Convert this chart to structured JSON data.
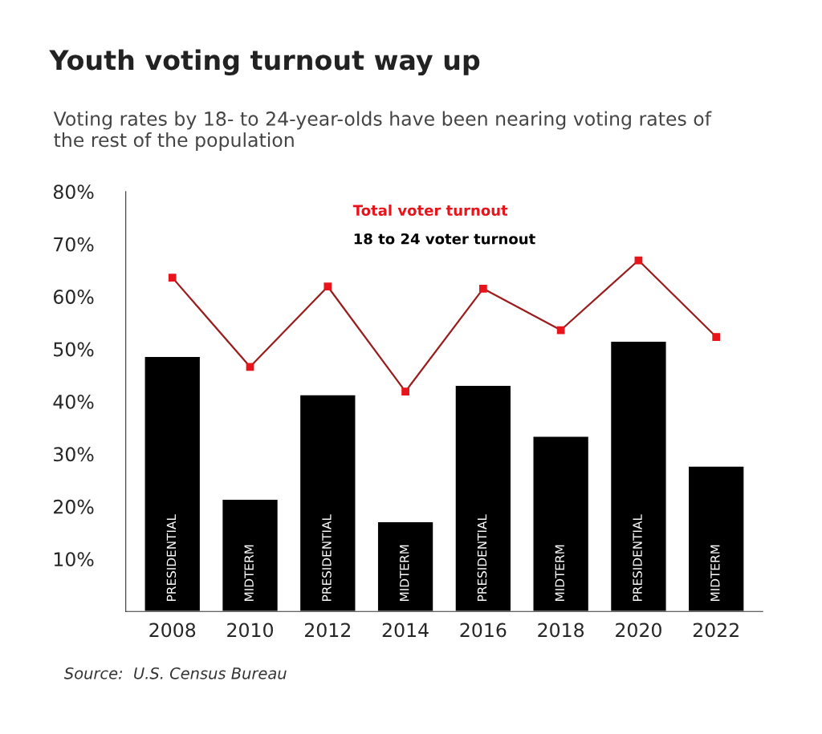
{
  "chart_data": {
    "type": "bar",
    "title": "Youth voting turnout way up",
    "subtitle": "Voting rates by 18- to 24-year-olds have been nearing voting rates of the rest of the population",
    "categories": [
      "2008",
      "2010",
      "2012",
      "2014",
      "2016",
      "2018",
      "2020",
      "2022"
    ],
    "series": [
      {
        "name": "18 to 24 voter turnout",
        "color": "#000000",
        "values": [
          48.6,
          21.4,
          41.3,
          17.1,
          43.1,
          33.4,
          51.5,
          27.7
        ]
      },
      {
        "name": "Total voter turnout",
        "type": "line",
        "color": "#9b1c1c",
        "marker": "square",
        "line_style": "solid",
        "values": [
          63.6,
          46.6,
          61.9,
          41.9,
          61.5,
          53.6,
          66.9,
          52.3
        ]
      }
    ],
    "ylim": [
      0,
      80
    ],
    "yticks": [
      {
        "value": 10,
        "label": "10%"
      },
      {
        "value": 20,
        "label": "20%"
      },
      {
        "value": 30,
        "label": "30%"
      },
      {
        "value": 40,
        "label": "40%"
      },
      {
        "value": 50,
        "label": "50%"
      },
      {
        "value": 60,
        "label": "60%"
      },
      {
        "value": 70,
        "label": "70%"
      },
      {
        "value": 80,
        "label": "80%"
      }
    ],
    "annotations": [
      "PRESIDENTIAL",
      "MIDTERM",
      "PRESIDENTIAL",
      "MIDTERM",
      "PRESIDENTIAL",
      "MIDTERM",
      "PRESIDENTIAL",
      "MIDTERM",
      "Source:  U.S. Census Bureau"
    ],
    "legend": "top",
    "grid": false
  }
}
